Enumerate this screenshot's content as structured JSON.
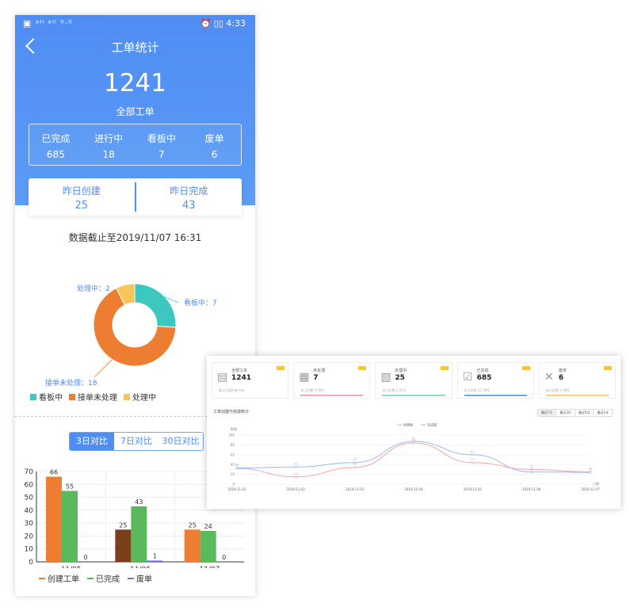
{
  "phone": {
    "statusbar": {
      "left": "▣ ᵃᴵˡ ᵃᴵˡ ⁰·⁰",
      "right": "⏰ ▯▯ 4:33"
    },
    "title": "工单统计",
    "total": {
      "value": "1241",
      "label": "全部工单"
    },
    "status_items": [
      {
        "label": "已完成",
        "value": "685"
      },
      {
        "label": "进行中",
        "value": "18"
      },
      {
        "label": "看板中",
        "value": "7"
      },
      {
        "label": "废单",
        "value": "6"
      }
    ],
    "yesterday": [
      {
        "label": "昨日创建",
        "value": "25"
      },
      {
        "label": "昨日完成",
        "value": "43"
      }
    ],
    "as_of": "数据截止至2019/11/07 16:31",
    "tabs": [
      "3日对比",
      "7日对比",
      "30日对比"
    ],
    "active_tab": 0
  },
  "donut_chart": {
    "chart_data": {
      "type": "pie",
      "slices": [
        {
          "name": "看板中",
          "value": 7,
          "label": "看板中：7",
          "color": "#3cc8c1"
        },
        {
          "name": "接单未处理",
          "value": 18,
          "label": "接单未处理：18",
          "color": "#ed7d31"
        },
        {
          "name": "处理中",
          "value": 2,
          "label": "处理中：2",
          "color": "#f7c657"
        }
      ],
      "legend": [
        "看板中",
        "接单未处理",
        "处理中"
      ]
    }
  },
  "bar_chart": {
    "chart_data": {
      "type": "bar",
      "categories": [
        "11/05",
        "11/06",
        "11/07"
      ],
      "series": [
        {
          "name": "创建工单",
          "values": [
            66,
            25,
            25
          ],
          "colors": [
            "#ed7d31",
            "#7b3f1e",
            "#ed7d31"
          ]
        },
        {
          "name": "已完成",
          "values": [
            55,
            43,
            24
          ],
          "color": "#5cb85c"
        },
        {
          "name": "废单",
          "values": [
            0,
            1,
            0
          ],
          "color": "#7c6bd6"
        }
      ],
      "ylim": [
        0,
        70
      ],
      "yticks": [
        0,
        10,
        20,
        30,
        40,
        50,
        60,
        70
      ],
      "legend": [
        "创建工单",
        "已完成",
        "废单"
      ],
      "legend_colors": [
        "#ed7d31",
        "#5cb85c",
        "#7c6bd6"
      ]
    }
  },
  "dashboard": {
    "kpis": [
      {
        "icon": "▤",
        "label": "全部工单",
        "value": "1241",
        "sub": "截止日前所有工单",
        "bar_color": ""
      },
      {
        "icon": "▦",
        "label": "未处理",
        "value": "7",
        "sub": "未占总数 0.56%",
        "bar_color": "#f4a6c4"
      },
      {
        "icon": "▧",
        "label": "处理中",
        "value": "25",
        "sub": "未占总数 2.01%",
        "bar_color": "#8fd7d0"
      },
      {
        "icon": "☑",
        "label": "已完成",
        "value": "685",
        "sub": "未占总数 55.20%",
        "bar_color": "#6fa8e8"
      },
      {
        "icon": "✕",
        "label": "废单",
        "value": "6",
        "sub": "未占总数 0.48%",
        "bar_color": "#f6d46b"
      }
    ],
    "chart_title": "工单创建与完成统计",
    "period_tabs": [
      "最近7天",
      "最近3月",
      "最近6月",
      "最近1年"
    ],
    "active_period": 0,
    "chart_data": {
      "type": "line",
      "x": [
        "2019-11-01",
        "2019-11-02",
        "2019-11-03",
        "2019-11-04",
        "2019-11-05",
        "2019-11-06",
        "2019-11-07"
      ],
      "series": [
        {
          "name": "创建量",
          "values": [
            32,
            15,
            34,
            84,
            44,
            30,
            25
          ],
          "color": "#f2a2a8"
        },
        {
          "name": "完成量",
          "values": [
            33,
            35,
            44,
            87,
            60,
            25,
            24
          ],
          "color": "#9ab8ea"
        }
      ],
      "ylim": [
        0,
        100
      ],
      "ylabel": "数量",
      "xlabel": "日期",
      "legend": [
        "创建量",
        "完成量"
      ]
    }
  }
}
